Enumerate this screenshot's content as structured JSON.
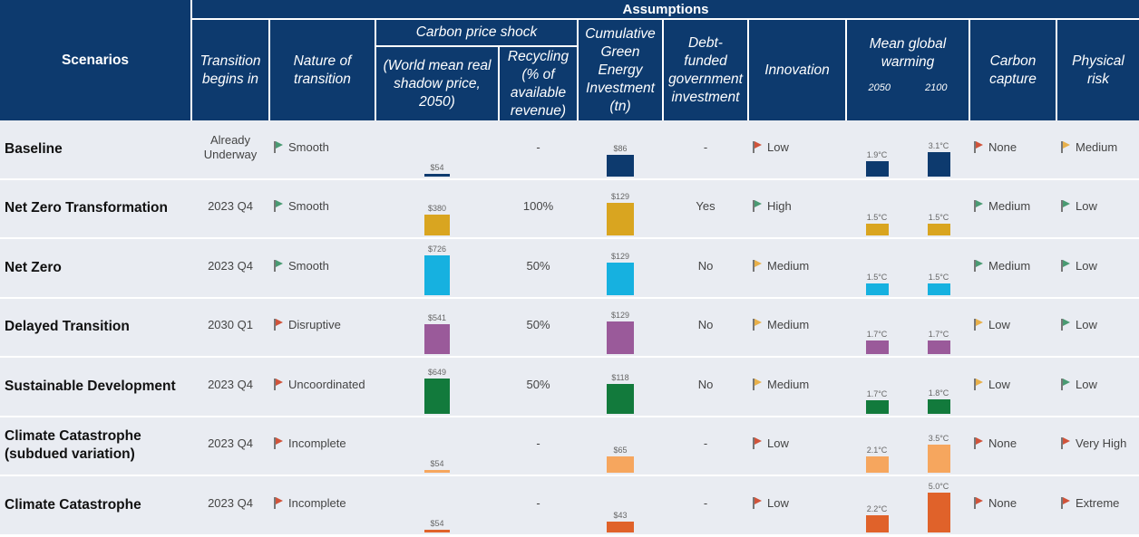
{
  "header": {
    "assumptions": "Assumptions",
    "scenarios": "Scenarios",
    "transition_begins": [
      "Transition",
      "begins in"
    ],
    "nature": [
      "Nature of",
      "transition"
    ],
    "carbon_price_shock": "Carbon price shock",
    "shadow_price": [
      "(World mean real",
      "shadow price,",
      "2050)"
    ],
    "recycling": [
      "Recycling",
      "(% of",
      "available",
      "revenue)"
    ],
    "green_inv": [
      "Cumulative",
      "Green",
      "Energy",
      "Investment",
      "(tn)"
    ],
    "debt": [
      "Debt-",
      "funded",
      "government",
      "investment"
    ],
    "innovation": "Innovation",
    "warming": [
      "Mean global",
      "warming"
    ],
    "year_2050": "2050",
    "year_2100": "2100",
    "carbon_capture": [
      "Carbon",
      "capture"
    ],
    "physical_risk": [
      "Physical",
      "risk"
    ]
  },
  "colors": {
    "header_bg": "#0d3a6e",
    "row_bg": "#e9ecf2",
    "flag_green": "#4a9a72",
    "flag_amber": "#e8b04a",
    "flag_red": "#d0533a"
  },
  "rows": [
    {
      "scenario": [
        "Baseline"
      ],
      "begins": [
        "Already",
        "Underway"
      ],
      "nature": "Smooth",
      "nature_flag": "green",
      "price": 54,
      "price_label": "$54",
      "recycling": "-",
      "investment": 86,
      "investment_label": "$86",
      "debt": "-",
      "innovation": "Low",
      "innovation_flag": "red",
      "w2050": 1.9,
      "w2050_label": "1.9°C",
      "w2100": 3.1,
      "w2100_label": "3.1°C",
      "capture": "None",
      "capture_flag": "red",
      "risk": "Medium",
      "risk_flag": "amber",
      "color": "#0d3a6e"
    },
    {
      "scenario": [
        "Net Zero Transformation"
      ],
      "begins": [
        "2023 Q4"
      ],
      "nature": "Smooth",
      "nature_flag": "green",
      "price": 380,
      "price_label": "$380",
      "recycling": "100%",
      "investment": 129,
      "investment_label": "$129",
      "debt": "Yes",
      "innovation": "High",
      "innovation_flag": "green",
      "w2050": 1.5,
      "w2050_label": "1.5°C",
      "w2100": 1.5,
      "w2100_label": "1.5°C",
      "capture": "Medium",
      "capture_flag": "green",
      "risk": "Low",
      "risk_flag": "green",
      "color": "#d9a520"
    },
    {
      "scenario": [
        "Net Zero"
      ],
      "begins": [
        "2023 Q4"
      ],
      "nature": "Smooth",
      "nature_flag": "green",
      "price": 726,
      "price_label": "$726",
      "recycling": "50%",
      "investment": 129,
      "investment_label": "$129",
      "debt": "No",
      "innovation": "Medium",
      "innovation_flag": "amber",
      "w2050": 1.5,
      "w2050_label": "1.5°C",
      "w2100": 1.5,
      "w2100_label": "1.5°C",
      "capture": "Medium",
      "capture_flag": "green",
      "risk": "Low",
      "risk_flag": "green",
      "color": "#16b1e0"
    },
    {
      "scenario": [
        "Delayed Transition"
      ],
      "begins": [
        "2030 Q1"
      ],
      "nature": "Disruptive",
      "nature_flag": "red",
      "price": 541,
      "price_label": "$541",
      "recycling": "50%",
      "investment": 129,
      "investment_label": "$129",
      "debt": "No",
      "innovation": "Medium",
      "innovation_flag": "amber",
      "w2050": 1.7,
      "w2050_label": "1.7°C",
      "w2100": 1.7,
      "w2100_label": "1.7°C",
      "capture": "Low",
      "capture_flag": "amber",
      "risk": "Low",
      "risk_flag": "green",
      "color": "#9a5a9a"
    },
    {
      "scenario": [
        "Sustainable Development"
      ],
      "begins": [
        "2023 Q4"
      ],
      "nature": "Uncoordinated",
      "nature_flag": "red",
      "price": 649,
      "price_label": "$649",
      "recycling": "50%",
      "investment": 118,
      "investment_label": "$118",
      "debt": "No",
      "innovation": "Medium",
      "innovation_flag": "amber",
      "w2050": 1.7,
      "w2050_label": "1.7°C",
      "w2100": 1.8,
      "w2100_label": "1.8°C",
      "capture": "Low",
      "capture_flag": "amber",
      "risk": "Low",
      "risk_flag": "green",
      "color": "#127a3c"
    },
    {
      "scenario": [
        "Climate Catastrophe",
        "(subdued variation)"
      ],
      "begins": [
        "2023 Q4"
      ],
      "nature": "Incomplete",
      "nature_flag": "red",
      "price": 54,
      "price_label": "$54",
      "recycling": "-",
      "investment": 65,
      "investment_label": "$65",
      "debt": "-",
      "innovation": "Low",
      "innovation_flag": "red",
      "w2050": 2.1,
      "w2050_label": "2.1°C",
      "w2100": 3.5,
      "w2100_label": "3.5°C",
      "capture": "None",
      "capture_flag": "red",
      "risk": "Very High",
      "risk_flag": "red",
      "color": "#f6a65e"
    },
    {
      "scenario": [
        "Climate Catastrophe"
      ],
      "begins": [
        "2023 Q4"
      ],
      "nature": "Incomplete",
      "nature_flag": "red",
      "price": 54,
      "price_label": "$54",
      "recycling": "-",
      "investment": 43,
      "investment_label": "$43",
      "debt": "-",
      "innovation": "Low",
      "innovation_flag": "red",
      "w2050": 2.2,
      "w2050_label": "2.2°C",
      "w2100": 5.0,
      "w2100_label": "5.0°C",
      "capture": "None",
      "capture_flag": "red",
      "risk": "Extreme",
      "risk_flag": "red",
      "color": "#e0622a"
    }
  ]
}
